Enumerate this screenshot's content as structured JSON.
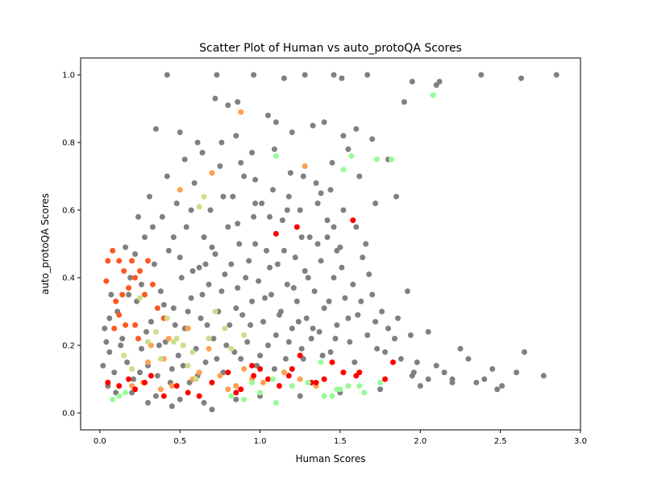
{
  "chart_data": {
    "type": "scatter",
    "title": "Scatter Plot of Human vs auto_protoQA Scores",
    "xlabel": "Human Scores",
    "ylabel": "auto_protoQA Scores",
    "xlim": [
      -0.12,
      3.0
    ],
    "ylim": [
      -0.05,
      1.05
    ],
    "x_ticks": [
      "0.0",
      "0.5",
      "1.0",
      "1.5",
      "2.0",
      "2.5",
      "3.0"
    ],
    "y_ticks": [
      "0.0",
      "0.2",
      "0.4",
      "0.6",
      "0.8",
      "1.0"
    ],
    "grid": false,
    "legend": "none",
    "colors": {
      "gray": "#808080",
      "red": "#ff0000",
      "orange_red": "#ff5722",
      "orange": "#ffa04d",
      "yellow_green": "#c8e08c",
      "light_green": "#98fb98"
    },
    "series": [
      {
        "color": "#808080",
        "x": [
          0.42,
          0.73,
          0.96,
          1.15,
          1.28,
          1.46,
          1.51,
          1.67,
          2.38,
          2.85,
          2.63,
          2.1,
          2.12,
          1.95,
          1.9,
          0.72,
          0.86,
          0.8,
          1.05,
          1.1,
          1.2,
          1.33,
          1.52,
          1.6,
          1.7,
          0.35,
          0.5,
          0.61,
          0.85,
          0.95,
          1.4,
          1.55,
          1.8,
          1.45,
          1.85,
          1.38,
          1.6,
          1.42,
          1.48,
          2.05,
          2.25,
          2.3,
          2.48,
          2.6,
          2.77,
          2.51,
          1.98,
          2.1,
          2.15,
          2.45,
          2.35,
          1.95,
          2.05,
          2.65,
          2.2
        ],
        "y": [
          1.0,
          1.0,
          1.0,
          0.99,
          1.0,
          1.0,
          0.99,
          1.0,
          1.0,
          1.0,
          0.99,
          0.97,
          0.98,
          0.98,
          0.92,
          0.93,
          0.92,
          0.91,
          0.88,
          0.86,
          0.83,
          0.85,
          0.82,
          0.84,
          0.81,
          0.84,
          0.83,
          0.8,
          0.82,
          0.77,
          0.86,
          0.78,
          0.75,
          0.74,
          0.64,
          0.65,
          0.55,
          0.52,
          0.48,
          0.24,
          0.19,
          0.16,
          0.07,
          0.12,
          0.11,
          0.08,
          0.15,
          0.14,
          0.12,
          0.13,
          0.09,
          0.11,
          0.1,
          0.18,
          0.1
        ]
      },
      {
        "color": "#ff5722",
        "x": [
          0.08,
          0.12,
          0.05,
          0.04,
          0.15,
          0.2,
          0.22,
          0.25,
          0.3,
          0.33,
          0.18,
          0.1,
          0.12,
          0.28,
          0.36,
          0.16,
          0.22,
          0.4,
          0.09,
          0.14,
          0.24
        ],
        "y": [
          0.48,
          0.45,
          0.45,
          0.39,
          0.42,
          0.45,
          0.4,
          0.42,
          0.45,
          0.38,
          0.37,
          0.33,
          0.29,
          0.35,
          0.31,
          0.26,
          0.26,
          0.28,
          0.25,
          0.35,
          0.22
        ]
      },
      {
        "color": "#ffa04d",
        "x": [
          0.88,
          1.28,
          0.5,
          0.7,
          0.2,
          0.27,
          0.38,
          0.45,
          0.58,
          0.62,
          0.75,
          0.85,
          0.95,
          1.02,
          1.15,
          1.25,
          0.32,
          0.43,
          0.55,
          0.68,
          0.9,
          1.35,
          0.4,
          0.8,
          0.3
        ],
        "y": [
          0.89,
          0.73,
          0.66,
          0.71,
          0.08,
          0.09,
          0.07,
          0.08,
          0.1,
          0.12,
          0.11,
          0.08,
          0.1,
          0.09,
          0.12,
          0.1,
          0.2,
          0.22,
          0.25,
          0.19,
          0.13,
          0.08,
          0.16,
          0.07,
          0.15
        ]
      },
      {
        "color": "#ff0000",
        "x": [
          1.1,
          1.23,
          1.58,
          0.05,
          0.12,
          0.18,
          0.22,
          0.28,
          0.32,
          0.4,
          0.48,
          0.55,
          0.62,
          0.7,
          0.8,
          0.88,
          0.96,
          1.0,
          1.05,
          1.12,
          1.18,
          1.25,
          1.32,
          1.4,
          1.45,
          1.52,
          1.6,
          1.62,
          1.78,
          1.83,
          0.85,
          1.2,
          1.35,
          0.95
        ],
        "y": [
          0.53,
          0.55,
          0.57,
          0.09,
          0.08,
          0.1,
          0.07,
          0.09,
          0.11,
          0.05,
          0.08,
          0.06,
          0.05,
          0.09,
          0.12,
          0.07,
          0.11,
          0.13,
          0.1,
          0.08,
          0.11,
          0.17,
          0.09,
          0.1,
          0.15,
          0.12,
          0.11,
          0.12,
          0.1,
          0.15,
          0.06,
          0.13,
          0.09,
          0.14
        ]
      },
      {
        "color": "#c8e08c",
        "x": [
          0.62,
          0.65,
          0.25,
          0.3,
          0.35,
          0.42,
          0.48,
          0.52,
          0.58,
          0.68,
          0.72,
          0.78,
          0.82,
          0.9,
          0.15,
          0.2,
          0.38,
          0.55,
          0.46,
          0.6
        ],
        "y": [
          0.61,
          0.64,
          0.34,
          0.21,
          0.24,
          0.28,
          0.22,
          0.2,
          0.18,
          0.22,
          0.3,
          0.25,
          0.19,
          0.23,
          0.17,
          0.13,
          0.16,
          0.14,
          0.21,
          0.1
        ]
      },
      {
        "color": "#98fb98",
        "x": [
          2.08,
          1.82,
          1.73,
          1.57,
          1.52,
          1.1,
          1.38,
          1.48,
          1.45,
          1.55,
          1.65,
          1.75,
          0.08,
          0.12,
          0.16,
          0.82,
          0.9,
          1.0,
          1.1,
          1.2,
          1.3,
          1.4,
          1.5,
          1.62,
          0.95,
          1.08
        ],
        "y": [
          0.94,
          0.75,
          0.75,
          0.76,
          0.72,
          0.76,
          0.15,
          0.07,
          0.05,
          0.08,
          0.06,
          0.09,
          0.04,
          0.05,
          0.06,
          0.05,
          0.04,
          0.06,
          0.03,
          0.08,
          0.09,
          0.05,
          0.07,
          0.08,
          0.09,
          0.1
        ]
      }
    ],
    "background_cloud": {
      "color": "#808080",
      "points": [
        [
          0.03,
          0.25
        ],
        [
          0.06,
          0.18
        ],
        [
          0.09,
          0.12
        ],
        [
          0.11,
          0.3
        ],
        [
          0.14,
          0.22
        ],
        [
          0.17,
          0.15
        ],
        [
          0.19,
          0.4
        ],
        [
          0.21,
          0.1
        ],
        [
          0.23,
          0.33
        ],
        [
          0.26,
          0.19
        ],
        [
          0.28,
          0.52
        ],
        [
          0.3,
          0.14
        ],
        [
          0.32,
          0.27
        ],
        [
          0.34,
          0.44
        ],
        [
          0.36,
          0.11
        ],
        [
          0.38,
          0.36
        ],
        [
          0.39,
          0.58
        ],
        [
          0.41,
          0.21
        ],
        [
          0.43,
          0.48
        ],
        [
          0.45,
          0.13
        ],
        [
          0.46,
          0.31
        ],
        [
          0.48,
          0.62
        ],
        [
          0.49,
          0.17
        ],
        [
          0.51,
          0.4
        ],
        [
          0.53,
          0.25
        ],
        [
          0.54,
          0.55
        ],
        [
          0.56,
          0.09
        ],
        [
          0.57,
          0.34
        ],
        [
          0.59,
          0.68
        ],
        [
          0.6,
          0.19
        ],
        [
          0.62,
          0.43
        ],
        [
          0.63,
          0.28
        ],
        [
          0.65,
          0.52
        ],
        [
          0.66,
          0.15
        ],
        [
          0.68,
          0.38
        ],
        [
          0.69,
          0.6
        ],
        [
          0.71,
          0.22
        ],
        [
          0.72,
          0.47
        ],
        [
          0.74,
          0.3
        ],
        [
          0.75,
          0.73
        ],
        [
          0.77,
          0.12
        ],
        [
          0.78,
          0.41
        ],
        [
          0.8,
          0.55
        ],
        [
          0.81,
          0.26
        ],
        [
          0.83,
          0.64
        ],
        [
          0.84,
          0.18
        ],
        [
          0.86,
          0.37
        ],
        [
          0.87,
          0.5
        ],
        [
          0.89,
          0.29
        ],
        [
          0.9,
          0.7
        ],
        [
          0.92,
          0.21
        ],
        [
          0.93,
          0.45
        ],
        [
          0.95,
          0.33
        ],
        [
          0.96,
          0.58
        ],
        [
          0.98,
          0.14
        ],
        [
          0.99,
          0.39
        ],
        [
          1.01,
          0.62
        ],
        [
          1.02,
          0.27
        ],
        [
          1.04,
          0.48
        ],
        [
          1.05,
          0.2
        ],
        [
          1.07,
          0.35
        ],
        [
          1.08,
          0.66
        ],
        [
          1.1,
          0.23
        ],
        [
          1.11,
          0.44
        ],
        [
          1.13,
          0.3
        ],
        [
          1.14,
          0.57
        ],
        [
          1.16,
          0.16
        ],
        [
          1.17,
          0.38
        ],
        [
          1.19,
          0.71
        ],
        [
          1.2,
          0.25
        ],
        [
          1.22,
          0.46
        ],
        [
          1.23,
          0.33
        ],
        [
          1.25,
          0.6
        ],
        [
          1.26,
          0.19
        ],
        [
          1.28,
          0.42
        ],
        [
          1.29,
          0.28
        ],
        [
          1.31,
          0.52
        ],
        [
          1.32,
          0.22
        ],
        [
          1.34,
          0.36
        ],
        [
          1.35,
          0.68
        ],
        [
          1.37,
          0.24
        ],
        [
          1.38,
          0.45
        ],
        [
          1.4,
          0.31
        ],
        [
          1.42,
          0.57
        ],
        [
          1.44,
          0.18
        ],
        [
          1.46,
          0.4
        ],
        [
          1.48,
          0.26
        ],
        [
          1.5,
          0.49
        ],
        [
          1.53,
          0.34
        ],
        [
          1.56,
          0.21
        ],
        [
          1.58,
          0.38
        ],
        [
          1.61,
          0.29
        ],
        [
          1.64,
          0.46
        ],
        [
          1.67,
          0.23
        ],
        [
          1.7,
          0.35
        ],
        [
          1.73,
          0.19
        ],
        [
          1.76,
          0.3
        ],
        [
          1.8,
          0.25
        ],
        [
          1.84,
          0.22
        ],
        [
          1.88,
          0.16
        ],
        [
          1.92,
          0.36
        ],
        [
          1.96,
          0.12
        ],
        [
          0.05,
          0.08
        ],
        [
          0.1,
          0.06
        ],
        [
          0.13,
          0.2
        ],
        [
          0.18,
          0.35
        ],
        [
          0.22,
          0.47
        ],
        [
          0.25,
          0.12
        ],
        [
          0.29,
          0.24
        ],
        [
          0.33,
          0.55
        ],
        [
          0.37,
          0.2
        ],
        [
          0.4,
          0.32
        ],
        [
          0.44,
          0.09
        ],
        [
          0.47,
          0.26
        ],
        [
          0.5,
          0.46
        ],
        [
          0.52,
          0.14
        ],
        [
          0.55,
          0.3
        ],
        [
          0.58,
          0.42
        ],
        [
          0.61,
          0.11
        ],
        [
          0.64,
          0.35
        ],
        [
          0.67,
          0.26
        ],
        [
          0.7,
          0.49
        ],
        [
          0.73,
          0.16
        ],
        [
          0.76,
          0.36
        ],
        [
          0.79,
          0.2
        ],
        [
          0.82,
          0.44
        ],
        [
          0.85,
          0.31
        ],
        [
          0.88,
          0.16
        ],
        [
          0.91,
          0.4
        ],
        [
          0.94,
          0.26
        ],
        [
          0.97,
          0.5
        ],
        [
          1.0,
          0.17
        ],
        [
          1.03,
          0.34
        ],
        [
          1.06,
          0.43
        ],
        [
          1.09,
          0.13
        ],
        [
          1.12,
          0.29
        ],
        [
          1.15,
          0.48
        ],
        [
          1.18,
          0.21
        ],
        [
          1.21,
          0.37
        ],
        [
          1.24,
          0.27
        ],
        [
          1.27,
          0.16
        ],
        [
          1.3,
          0.4
        ],
        [
          1.33,
          0.25
        ],
        [
          1.36,
          0.5
        ],
        [
          1.39,
          0.17
        ],
        [
          1.43,
          0.33
        ],
        [
          1.47,
          0.22
        ],
        [
          1.51,
          0.43
        ],
        [
          1.55,
          0.28
        ],
        [
          1.59,
          0.15
        ],
        [
          1.63,
          0.33
        ],
        [
          1.68,
          0.41
        ],
        [
          1.72,
          0.27
        ],
        [
          1.78,
          0.18
        ],
        [
          1.86,
          0.28
        ],
        [
          1.94,
          0.23
        ],
        [
          0.07,
          0.35
        ],
        [
          0.16,
          0.49
        ],
        [
          0.24,
          0.58
        ],
        [
          0.31,
          0.64
        ],
        [
          0.42,
          0.7
        ],
        [
          0.53,
          0.75
        ],
        [
          0.64,
          0.77
        ],
        [
          0.76,
          0.8
        ],
        [
          0.88,
          0.74
        ],
        [
          0.97,
          0.69
        ],
        [
          1.09,
          0.78
        ],
        [
          1.18,
          0.64
        ],
        [
          1.27,
          0.7
        ],
        [
          1.36,
          0.62
        ],
        [
          1.44,
          0.66
        ],
        [
          1.52,
          0.6
        ],
        [
          1.62,
          0.7
        ],
        [
          1.72,
          0.62
        ],
        [
          0.2,
          0.06
        ],
        [
          0.35,
          0.05
        ],
        [
          0.5,
          0.04
        ],
        [
          0.65,
          0.03
        ],
        [
          0.7,
          0.01
        ],
        [
          0.45,
          0.02
        ],
        [
          0.3,
          0.03
        ],
        [
          0.85,
          0.04
        ],
        [
          1.0,
          0.05
        ],
        [
          1.25,
          0.05
        ],
        [
          1.5,
          0.06
        ],
        [
          1.75,
          0.07
        ],
        [
          2.0,
          0.08
        ],
        [
          2.2,
          0.09
        ],
        [
          2.4,
          0.1
        ],
        [
          0.02,
          0.14
        ],
        [
          0.04,
          0.21
        ],
        [
          0.06,
          0.28
        ],
        [
          0.26,
          0.38
        ],
        [
          0.46,
          0.52
        ],
        [
          0.66,
          0.44
        ],
        [
          0.86,
          0.56
        ],
        [
          1.06,
          0.58
        ],
        [
          1.26,
          0.52
        ],
        [
          1.46,
          0.55
        ],
        [
          1.66,
          0.5
        ],
        [
          0.57,
          0.6
        ],
        [
          0.77,
          0.64
        ],
        [
          0.97,
          0.62
        ],
        [
          1.17,
          0.6
        ]
      ]
    }
  }
}
